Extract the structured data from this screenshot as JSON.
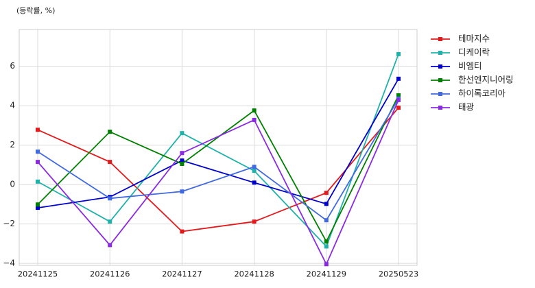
{
  "chart_data": {
    "type": "line",
    "ylabel": "(등락률, %)",
    "categories": [
      "20241125",
      "20241126",
      "20241127",
      "20241128",
      "20241129",
      "20250523"
    ],
    "series": [
      {
        "name": "테마지수",
        "color": "#e31a1c",
        "values": [
          2.78,
          1.15,
          -2.38,
          -1.88,
          -0.42,
          3.9
        ]
      },
      {
        "name": "디케이락",
        "color": "#20b2aa",
        "values": [
          0.15,
          -1.88,
          2.61,
          0.7,
          -3.14,
          6.62
        ]
      },
      {
        "name": "비엠티",
        "color": "#0000cd",
        "values": [
          -1.18,
          -0.63,
          1.22,
          0.1,
          -0.98,
          5.37
        ]
      },
      {
        "name": "한선엔지니어링",
        "color": "#008000",
        "values": [
          -1.01,
          2.68,
          1.05,
          3.76,
          -2.89,
          4.53
        ]
      },
      {
        "name": "하이록코리아",
        "color": "#4169e1",
        "values": [
          1.67,
          -0.7,
          -0.35,
          0.9,
          -1.81,
          4.36
        ]
      },
      {
        "name": "태광",
        "color": "#8a2be2",
        "values": [
          1.15,
          -3.07,
          1.6,
          3.28,
          -4.04,
          4.29
        ]
      }
    ],
    "ylim": [
      -4.1,
      7.87
    ],
    "yticks": [
      {
        "value": -4,
        "label": "−4"
      },
      {
        "value": -2,
        "label": "−2"
      },
      0,
      2,
      4,
      6
    ],
    "grid": true,
    "legend": "outside-right"
  }
}
